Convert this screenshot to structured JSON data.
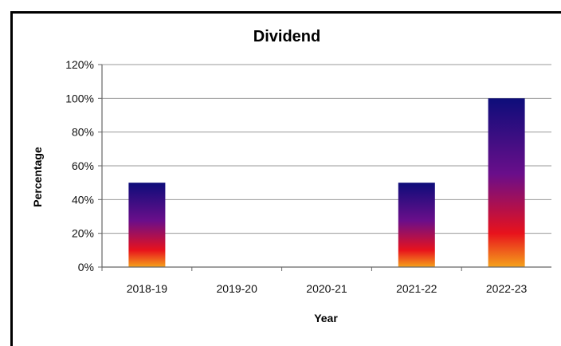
{
  "chart_data": {
    "type": "bar",
    "title": "Dividend",
    "xlabel": "Year",
    "ylabel": "Percentage",
    "categories": [
      "2018-19",
      "2019-20",
      "2020-21",
      "2021-22",
      "2022-23"
    ],
    "values": [
      50,
      0,
      0,
      50,
      100
    ],
    "y_tick_labels": [
      "0%",
      "20%",
      "40%",
      "60%",
      "80%",
      "100%",
      "120%"
    ],
    "ylim": [
      0,
      120
    ],
    "grid": true,
    "legend": "none",
    "colors": {
      "bar_top": "#0d0d7a",
      "bar_mid": "#6a0e8a",
      "bar_lower": "#e8121c",
      "bar_bottom": "#f5a21b",
      "grid": "#9a9a9a"
    }
  }
}
